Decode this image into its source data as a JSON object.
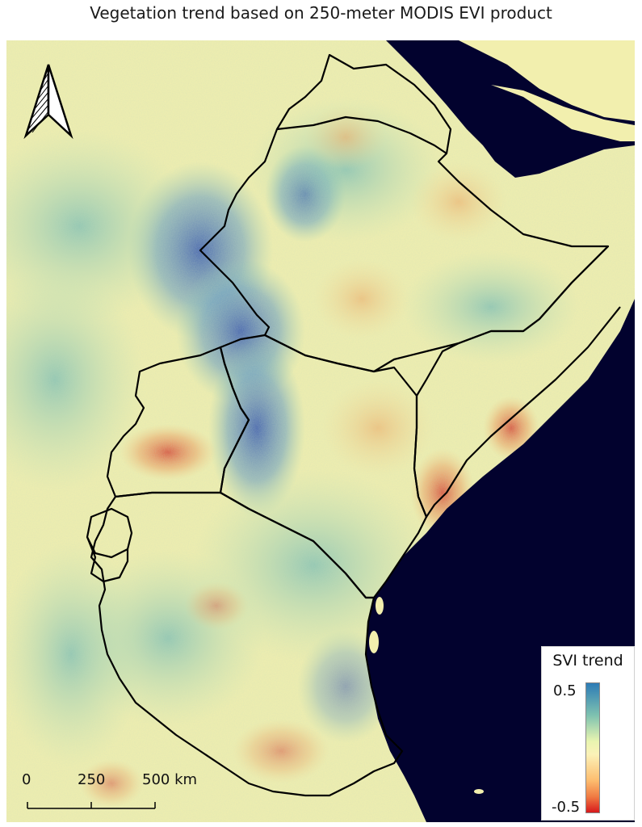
{
  "title": "Vegetation trend based on 250-meter MODIS EVI product",
  "legend": {
    "title": "SVI trend",
    "max_label": "0.5",
    "min_label": "-0.5",
    "colors": [
      "#2c7bb6",
      "#abd9e9",
      "#ffffbf",
      "#fdae61",
      "#d7191c"
    ]
  },
  "scale_bar": {
    "labels": [
      "0",
      "250",
      "500 km"
    ]
  },
  "north_arrow": {
    "icon": "north-arrow-icon"
  },
  "colors": {
    "ocean": "#02022e",
    "land_base": "#f4f0b0",
    "border": "#000000"
  }
}
